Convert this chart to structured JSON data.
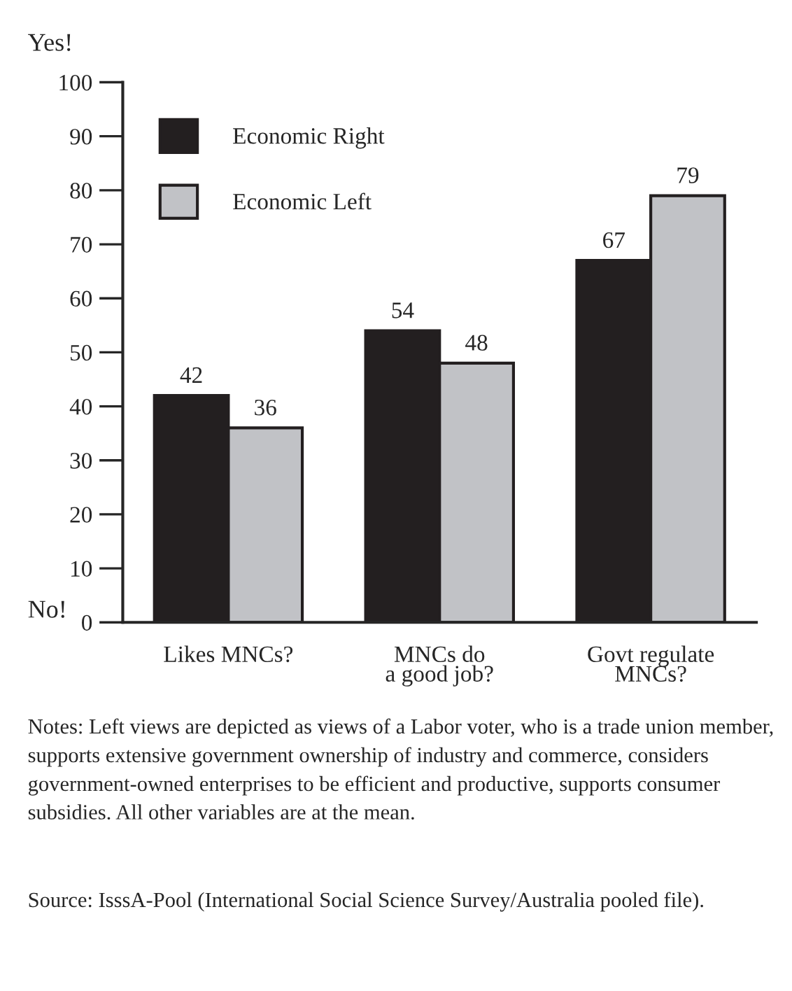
{
  "chart_data": {
    "type": "bar",
    "categories": [
      "Likes MNCs?",
      "MNCs do\na good job?",
      "Govt regulate\nMNCs?"
    ],
    "series": [
      {
        "name": "Economic Right",
        "color": "#231f20",
        "values": [
          42,
          54,
          67
        ]
      },
      {
        "name": "Economic Left",
        "color": "#c1c2c6",
        "values": [
          36,
          48,
          79
        ]
      }
    ],
    "ylim": [
      0,
      100
    ],
    "yticks": [
      0,
      10,
      20,
      30,
      40,
      50,
      60,
      70,
      80,
      90,
      100
    ],
    "data_labels": true,
    "legend": "top left",
    "grid": false,
    "annotations": [
      "Yes!",
      "No!",
      "Notes: Left views are depicted as views of a Labor voter, who is a trade union member, supports extensive government ownership of industry and commerce, considers government-owned enterprises to be efficient and productive, supports consumer subsidies. All other variables are at the mean.",
      "Source: IsssA-Pool (International Social Science Survey/Australia pooled file)."
    ]
  }
}
